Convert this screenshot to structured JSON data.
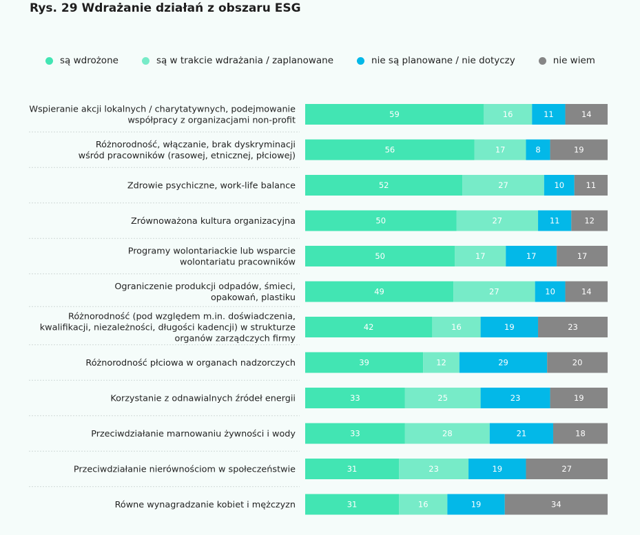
{
  "title": "Rys. 29 Wdrażanie działań z obszaru ESG",
  "legend": [
    {
      "label": "są wdrożone",
      "color": "#42e5b3"
    },
    {
      "label": "są w trakcie wdrażania / zaplanowane",
      "color": "#77ebc8"
    },
    {
      "label": "nie są planowane / nie dotyczy",
      "color": "#03b8e8"
    },
    {
      "label": "nie wiem",
      "color": "#868686"
    }
  ],
  "chart_data": {
    "type": "bar",
    "orientation": "horizontal",
    "stacked": true,
    "title": "Rys. 29 Wdrażanie działań z obszaru ESG",
    "xlabel": "",
    "ylabel": "",
    "xlim": [
      0,
      100
    ],
    "grid": false,
    "legend_position": "top",
    "categories": [
      [
        "Wspieranie akcji lokalnych / charytatywnych, podejmowanie",
        "współpracy z organizacjami non-profit"
      ],
      [
        "Różnorodność, włączanie, brak dyskryminacji",
        "wśród pracowników (rasowej, etnicznej, płciowej)"
      ],
      [
        "Zdrowie psychiczne, work-life balance"
      ],
      [
        "Zrównoważona kultura organizacyjna"
      ],
      [
        "Programy wolontariackie lub wsparcie",
        "wolontariatu pracowników"
      ],
      [
        "Ograniczenie produkcji odpadów, śmieci,",
        "opakowań, plastiku"
      ],
      [
        "Różnorodność (pod względem m.in. doświadczenia,",
        "kwalifikacji, niezależności, długości kadencji) w strukturze",
        "organów zarządczych firmy"
      ],
      [
        "Różnorodność płciowa w organach nadzorczych"
      ],
      [
        "Korzystanie z odnawialnych źródeł energii"
      ],
      [
        "Przeciwdziałanie marnowaniu żywności i wody"
      ],
      [
        "Przeciwdziałanie nierównościom w społeczeństwie"
      ],
      [
        "Równe wynagradzanie kobiet i mężczyzn"
      ]
    ],
    "series": [
      {
        "name": "są wdrożone",
        "color": "#42e5b3",
        "values": [
          59,
          56,
          52,
          50,
          50,
          49,
          42,
          39,
          33,
          33,
          31,
          31
        ]
      },
      {
        "name": "są w trakcie wdrażania / zaplanowane",
        "color": "#77ebc8",
        "values": [
          16,
          17,
          27,
          27,
          17,
          27,
          16,
          12,
          25,
          28,
          23,
          16
        ]
      },
      {
        "name": "nie są planowane / nie dotyczy",
        "color": "#03b8e8",
        "values": [
          11,
          8,
          10,
          11,
          17,
          10,
          19,
          29,
          23,
          21,
          19,
          19
        ]
      },
      {
        "name": "nie wiem",
        "color": "#868686",
        "values": [
          14,
          19,
          11,
          12,
          17,
          14,
          23,
          20,
          19,
          18,
          27,
          34
        ]
      }
    ]
  }
}
